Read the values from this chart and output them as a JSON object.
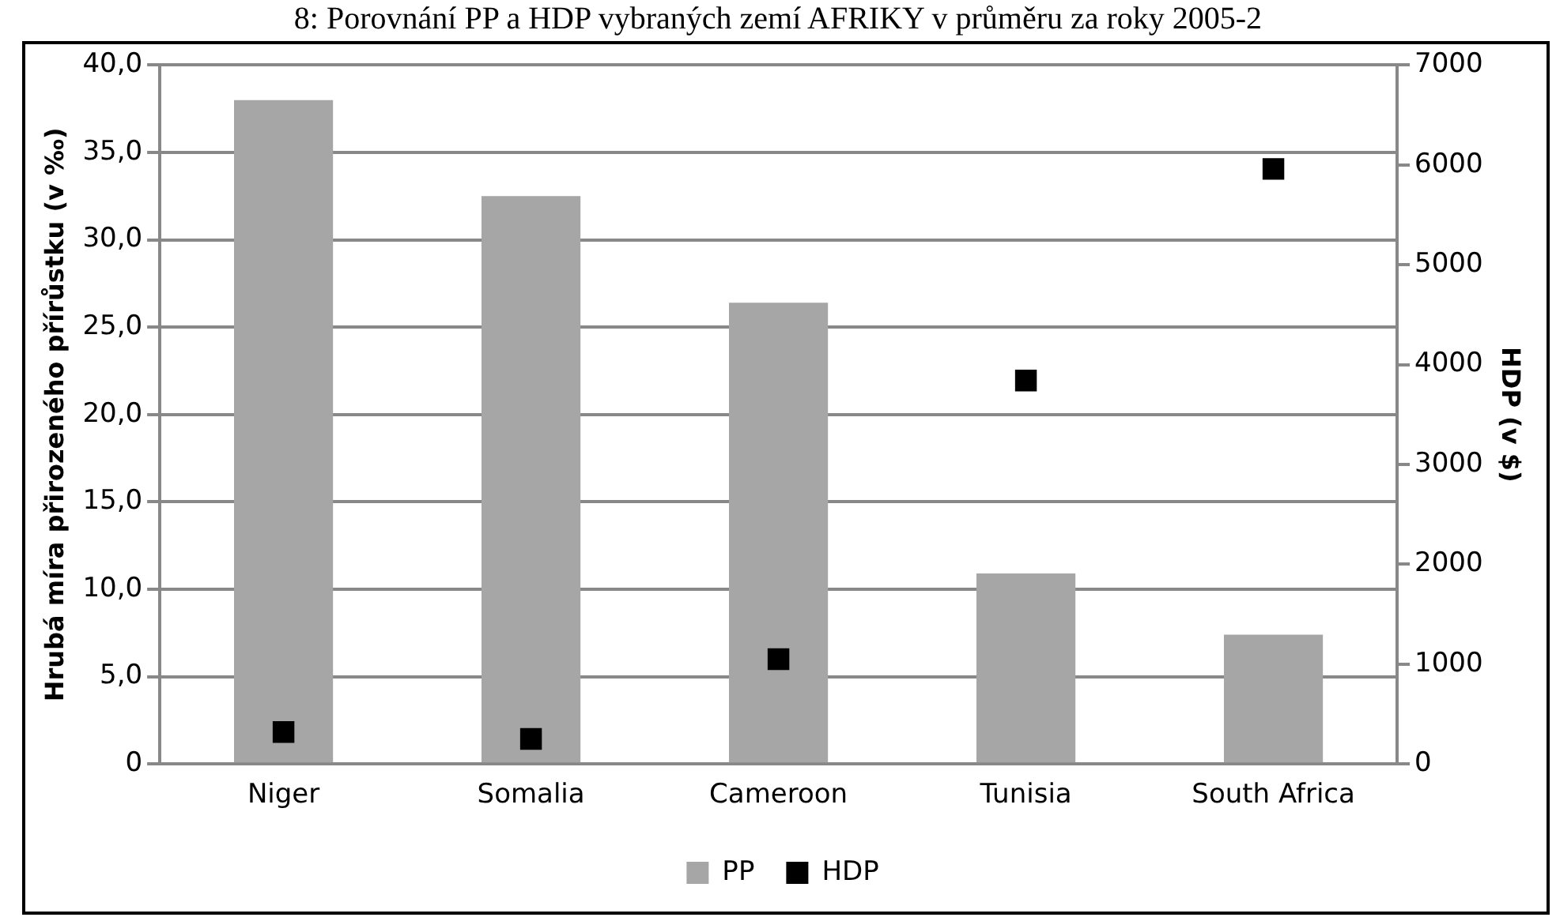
{
  "chart_data": {
    "type": "bar",
    "title": "8: Porovnání PP a HDP vybraných zemí AFRIKY v průměru za roky 2005-2",
    "categories": [
      "Niger",
      "Somalia",
      "Cameroon",
      "Tunisia",
      "South Africa"
    ],
    "series": [
      {
        "name": "PP",
        "color": "#a6a6a6",
        "values": [
          38.0,
          32.5,
          26.4,
          10.9,
          7.4
        ]
      },
      {
        "name": "HDP",
        "type": "scatter",
        "axis": "y2",
        "color": "#000000",
        "values": [
          320,
          250,
          1050,
          3840,
          5960
        ]
      }
    ],
    "ylabel": "Hrubá míra přirozeného přírůstku (v ‰)",
    "y2label": "HDP (v $)",
    "ylim": [
      0,
      40
    ],
    "yticks": [
      {
        "value": 0,
        "label": "0"
      },
      {
        "value": 5,
        "label": "5,0"
      },
      {
        "value": 10,
        "label": "10,0"
      },
      {
        "value": 15,
        "label": "15,0"
      },
      {
        "value": 20,
        "label": "20,0"
      },
      {
        "value": 25,
        "label": "25,0"
      },
      {
        "value": 30,
        "label": "30,0"
      },
      {
        "value": 35,
        "label": "35,0"
      },
      {
        "value": 40,
        "label": "40,0"
      }
    ],
    "y2lim": [
      0,
      7000
    ],
    "y2ticks": [
      0,
      1000,
      2000,
      3000,
      4000,
      5000,
      6000,
      7000
    ],
    "grid": "y",
    "legend": "bottom",
    "marker": "square"
  }
}
